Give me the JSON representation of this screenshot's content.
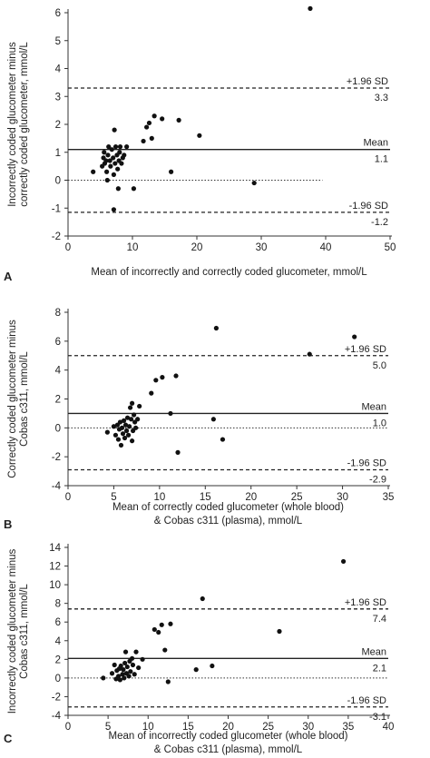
{
  "chart_data": [
    {
      "panel_label": "A",
      "type": "scatter",
      "ylabel_lines": [
        "Incorrectly coded glucometer minus",
        "correctly coded glucometer, mmol/L"
      ],
      "xlabel_lines": [
        "Mean of incorrectly and correctly coded glucometer, mmol/L"
      ],
      "xlim": [
        0,
        50
      ],
      "ylim": [
        -2,
        6
      ],
      "xticks": [
        0,
        10,
        20,
        30,
        40,
        50
      ],
      "yticks": [
        -2,
        -1,
        0,
        1,
        2,
        3,
        4,
        5,
        6
      ],
      "zero_line_xmax": 39.5,
      "lines": [
        {
          "style": "dashed",
          "y": 3.3,
          "label": "+1.96 SD",
          "value_label": "3.3"
        },
        {
          "style": "solid",
          "y": 1.1,
          "label": "Mean",
          "value_label": "1.1"
        },
        {
          "style": "dashed",
          "y": -1.15,
          "label": "-1.96 SD",
          "value_label": "-1.2"
        }
      ],
      "points": [
        [
          3.9,
          0.3
        ],
        [
          5.3,
          0.5
        ],
        [
          5.5,
          0.8
        ],
        [
          5.6,
          1.0
        ],
        [
          5.7,
          0.6
        ],
        [
          5.9,
          0.7
        ],
        [
          6.0,
          0.3
        ],
        [
          6.1,
          0.0
        ],
        [
          6.2,
          0.9
        ],
        [
          6.3,
          1.2
        ],
        [
          6.5,
          0.7
        ],
        [
          6.6,
          0.5
        ],
        [
          6.8,
          1.1
        ],
        [
          7.0,
          0.8
        ],
        [
          7.1,
          0.2
        ],
        [
          7.2,
          1.8
        ],
        [
          7.3,
          0.6
        ],
        [
          7.4,
          1.2
        ],
        [
          7.6,
          0.9
        ],
        [
          7.7,
          0.4
        ],
        [
          7.8,
          -0.3
        ],
        [
          7.9,
          0.7
        ],
        [
          8.0,
          1.0
        ],
        [
          8.1,
          1.2
        ],
        [
          8.3,
          0.6
        ],
        [
          8.5,
          0.8
        ],
        [
          8.7,
          0.9
        ],
        [
          9.1,
          1.2
        ],
        [
          7.1,
          -1.05
        ],
        [
          10.2,
          -0.3
        ],
        [
          11.7,
          1.4
        ],
        [
          12.2,
          1.9
        ],
        [
          12.6,
          2.05
        ],
        [
          13.0,
          1.5
        ],
        [
          13.4,
          2.3
        ],
        [
          14.6,
          2.2
        ],
        [
          16.0,
          0.3
        ],
        [
          17.2,
          2.15
        ],
        [
          20.4,
          1.6
        ],
        [
          28.9,
          -0.1
        ],
        [
          37.6,
          6.15
        ]
      ]
    },
    {
      "panel_label": "B",
      "type": "scatter",
      "ylabel_lines": [
        "Correctly coded glucometer minus",
        "Cobas c311, mmol/L"
      ],
      "xlabel_lines": [
        "Mean of correctly coded glucometer (whole blood)",
        "& Cobas c311 (plasma), mmol/L"
      ],
      "xlim": [
        0,
        35
      ],
      "ylim": [
        -4,
        8
      ],
      "xticks": [
        0,
        5,
        10,
        15,
        20,
        25,
        30,
        35
      ],
      "yticks": [
        -4,
        -2,
        0,
        2,
        4,
        6,
        8
      ],
      "zero_line_xmax": 35,
      "lines": [
        {
          "style": "dashed",
          "y": 5.0,
          "label": "+1.96 SD",
          "value_label": "5.0"
        },
        {
          "style": "solid",
          "y": 1.0,
          "label": "Mean",
          "value_label": "1.0"
        },
        {
          "style": "dashed",
          "y": -2.9,
          "label": "-1.96 SD",
          "value_label": "-2.9"
        }
      ],
      "points": [
        [
          4.3,
          -0.3
        ],
        [
          5.0,
          0.1
        ],
        [
          5.2,
          -0.5
        ],
        [
          5.4,
          0.2
        ],
        [
          5.5,
          -0.8
        ],
        [
          5.6,
          -0.1
        ],
        [
          5.7,
          0.4
        ],
        [
          5.8,
          -1.2
        ],
        [
          5.9,
          0.0
        ],
        [
          6.0,
          -0.4
        ],
        [
          6.1,
          0.5
        ],
        [
          6.2,
          -0.7
        ],
        [
          6.3,
          0.2
        ],
        [
          6.4,
          -0.2
        ],
        [
          6.5,
          0.7
        ],
        [
          6.6,
          -0.5
        ],
        [
          6.7,
          0.1
        ],
        [
          6.8,
          1.4
        ],
        [
          6.9,
          0.6
        ],
        [
          7.0,
          1.7
        ],
        [
          7.0,
          -0.9
        ],
        [
          7.1,
          -0.2
        ],
        [
          7.2,
          0.9
        ],
        [
          7.3,
          0.4
        ],
        [
          7.4,
          0.0
        ],
        [
          7.6,
          0.6
        ],
        [
          7.8,
          1.5
        ],
        [
          9.1,
          2.4
        ],
        [
          9.6,
          3.3
        ],
        [
          10.3,
          3.5
        ],
        [
          11.2,
          1.0
        ],
        [
          11.8,
          3.6
        ],
        [
          12.0,
          -1.7
        ],
        [
          15.9,
          0.6
        ],
        [
          16.2,
          6.9
        ],
        [
          16.9,
          -0.8
        ],
        [
          26.4,
          5.1
        ],
        [
          31.3,
          6.3
        ]
      ]
    },
    {
      "panel_label": "C",
      "type": "scatter",
      "ylabel_lines": [
        "Incorrectly coded glucometer minus",
        "Cobas c311, mmol/L"
      ],
      "xlabel_lines": [
        "Mean of incorrectly coded glucometer (whole blood)",
        "& Cobas c311 (plasma), mmol/L"
      ],
      "xlim": [
        0,
        40
      ],
      "ylim": [
        -4,
        14
      ],
      "xticks": [
        0,
        5,
        10,
        15,
        20,
        25,
        30,
        35,
        40
      ],
      "yticks": [
        -4,
        -2,
        0,
        2,
        4,
        6,
        8,
        10,
        12,
        14
      ],
      "zero_line_xmax": 40,
      "lines": [
        {
          "style": "dashed",
          "y": 7.4,
          "label": "+1.96 SD",
          "value_label": "7.4"
        },
        {
          "style": "solid",
          "y": 2.1,
          "label": "Mean",
          "value_label": "2.1"
        },
        {
          "style": "dashed",
          "y": -3.1,
          "label": "-1.96 SD",
          "value_label": "-3.1"
        }
      ],
      "points": [
        [
          4.4,
          0.0
        ],
        [
          5.5,
          0.5
        ],
        [
          5.8,
          1.4
        ],
        [
          6.0,
          -0.1
        ],
        [
          6.1,
          0.8
        ],
        [
          6.3,
          0.2
        ],
        [
          6.4,
          1.0
        ],
        [
          6.5,
          -0.2
        ],
        [
          6.6,
          1.3
        ],
        [
          6.8,
          0.4
        ],
        [
          6.9,
          0.9
        ],
        [
          7.0,
          0.0
        ],
        [
          7.1,
          1.6
        ],
        [
          7.2,
          2.8
        ],
        [
          7.3,
          0.5
        ],
        [
          7.4,
          1.2
        ],
        [
          7.6,
          0.2
        ],
        [
          7.7,
          1.8
        ],
        [
          7.8,
          0.7
        ],
        [
          8.0,
          2.1
        ],
        [
          8.1,
          1.4
        ],
        [
          8.3,
          0.4
        ],
        [
          8.5,
          2.8
        ],
        [
          8.8,
          1.1
        ],
        [
          9.3,
          2.0
        ],
        [
          10.8,
          5.2
        ],
        [
          11.3,
          4.9
        ],
        [
          11.7,
          5.7
        ],
        [
          12.1,
          3.0
        ],
        [
          12.5,
          -0.4
        ],
        [
          12.8,
          5.8
        ],
        [
          16.0,
          0.9
        ],
        [
          16.8,
          8.5
        ],
        [
          18.0,
          1.3
        ],
        [
          26.4,
          5.0
        ],
        [
          34.4,
          12.5
        ]
      ]
    }
  ]
}
